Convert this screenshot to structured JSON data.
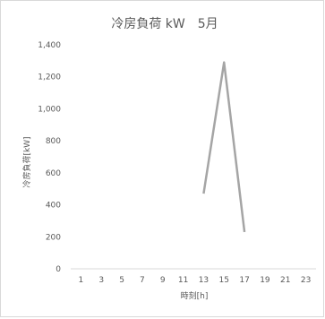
{
  "chart_data": {
    "type": "line",
    "title": "冷房負荷 kW　5月",
    "xlabel": "時刻[h]",
    "ylabel": "冷房負荷[kW]",
    "x_tick_labels": [
      "1",
      "3",
      "5",
      "7",
      "9",
      "11",
      "13",
      "15",
      "17",
      "19",
      "21",
      "23"
    ],
    "y_tick_labels": [
      "0",
      "200",
      "400",
      "600",
      "800",
      "1,000",
      "1,200",
      "1,400"
    ],
    "ylim": [
      0,
      1400
    ],
    "xlim": [
      0,
      24
    ],
    "grid": false,
    "legend": "none",
    "series": [
      {
        "color": "#a5a5a5",
        "x": [
          13,
          15,
          17
        ],
        "y": [
          470,
          1290,
          230
        ]
      }
    ]
  }
}
